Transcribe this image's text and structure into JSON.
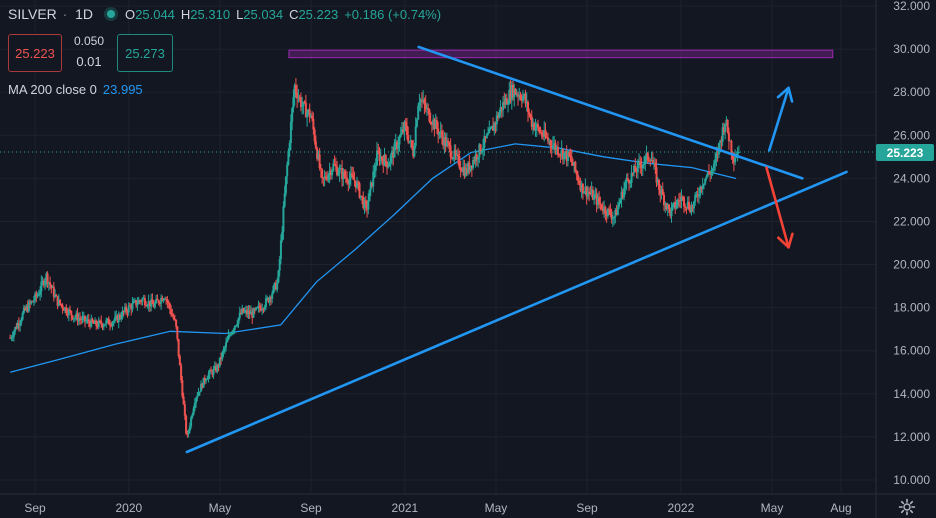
{
  "header": {
    "symbol": "SILVER",
    "timeframe": "1D",
    "ohlc": [
      {
        "k": "O",
        "v": "25.044"
      },
      {
        "k": "H",
        "v": "25.310"
      },
      {
        "k": "L",
        "v": "25.034"
      },
      {
        "k": "C",
        "v": "25.223"
      }
    ],
    "change": "+0.186 (+0.74%)"
  },
  "trade": {
    "sell_price": "25.223",
    "spread": "0.050",
    "quantity": "0.01",
    "buy_price": "25.273"
  },
  "indicator": {
    "label": "MA 200 close 0",
    "value": "23.995"
  },
  "last_price_tag": "25.223",
  "chart_data": {
    "type": "candlestick",
    "y_axis_ticks": [
      "32.000",
      "30.000",
      "28.000",
      "26.000",
      "24.000",
      "22.000",
      "20.000",
      "18.000",
      "16.000",
      "14.000",
      "12.000",
      "10.000"
    ],
    "x_axis_ticks": [
      "Sep",
      "2020",
      "May",
      "Sep",
      "2021",
      "May",
      "Sep",
      "2022",
      "May",
      "Aug"
    ],
    "ylim": [
      9.5,
      32.3
    ],
    "last_close": 25.223,
    "price_path": [
      [
        2019.57,
        16.6
      ],
      [
        2019.62,
        17.8
      ],
      [
        2019.67,
        18.6
      ],
      [
        2019.7,
        19.5
      ],
      [
        2019.74,
        18.3
      ],
      [
        2019.8,
        17.6
      ],
      [
        2019.88,
        17.2
      ],
      [
        2019.95,
        17.4
      ],
      [
        2020.0,
        18.0
      ],
      [
        2020.05,
        18.4
      ],
      [
        2020.09,
        18.1
      ],
      [
        2020.13,
        18.6
      ],
      [
        2020.17,
        17.2
      ],
      [
        2020.21,
        11.9
      ],
      [
        2020.24,
        13.8
      ],
      [
        2020.28,
        14.8
      ],
      [
        2020.32,
        15.2
      ],
      [
        2020.37,
        16.9
      ],
      [
        2020.41,
        17.8
      ],
      [
        2020.45,
        17.7
      ],
      [
        2020.5,
        18.3
      ],
      [
        2020.54,
        19.2
      ],
      [
        2020.57,
        24.1
      ],
      [
        2020.6,
        28.3
      ],
      [
        2020.63,
        27.3
      ],
      [
        2020.66,
        26.9
      ],
      [
        2020.7,
        23.8
      ],
      [
        2020.74,
        24.6
      ],
      [
        2020.78,
        24.1
      ],
      [
        2020.82,
        23.9
      ],
      [
        2020.86,
        22.5
      ],
      [
        2020.9,
        25.1
      ],
      [
        2020.94,
        24.7
      ],
      [
        2021.0,
        26.4
      ],
      [
        2021.03,
        25.2
      ],
      [
        2021.05,
        27.8
      ],
      [
        2021.09,
        26.9
      ],
      [
        2021.14,
        25.8
      ],
      [
        2021.18,
        25.0
      ],
      [
        2021.22,
        24.3
      ],
      [
        2021.27,
        25.3
      ],
      [
        2021.31,
        26.1
      ],
      [
        2021.35,
        27.3
      ],
      [
        2021.39,
        28.1
      ],
      [
        2021.43,
        27.8
      ],
      [
        2021.46,
        26.6
      ],
      [
        2021.5,
        26.0
      ],
      [
        2021.55,
        25.4
      ],
      [
        2021.6,
        24.9
      ],
      [
        2021.64,
        23.6
      ],
      [
        2021.68,
        23.2
      ],
      [
        2021.72,
        22.6
      ],
      [
        2021.76,
        22.2
      ],
      [
        2021.8,
        23.8
      ],
      [
        2021.85,
        24.6
      ],
      [
        2021.89,
        25.1
      ],
      [
        2021.92,
        23.6
      ],
      [
        2021.96,
        22.4
      ],
      [
        2022.0,
        23.1
      ],
      [
        2022.04,
        22.6
      ],
      [
        2022.08,
        23.9
      ],
      [
        2022.12,
        24.5
      ],
      [
        2022.16,
        26.7
      ],
      [
        2022.19,
        25.0
      ],
      [
        2022.21,
        25.223
      ]
    ],
    "moving_average_200": [
      [
        2019.57,
        15.0
      ],
      [
        2019.75,
        15.6
      ],
      [
        2019.95,
        16.3
      ],
      [
        2020.15,
        16.9
      ],
      [
        2020.35,
        16.8
      ],
      [
        2020.55,
        17.2
      ],
      [
        2020.68,
        19.2
      ],
      [
        2020.82,
        20.7
      ],
      [
        2020.96,
        22.3
      ],
      [
        2021.1,
        24.0
      ],
      [
        2021.24,
        25.2
      ],
      [
        2021.4,
        25.6
      ],
      [
        2021.56,
        25.4
      ],
      [
        2021.72,
        25.0
      ],
      [
        2021.88,
        24.7
      ],
      [
        2022.04,
        24.5
      ],
      [
        2022.2,
        23.995
      ]
    ],
    "resistance_zone": {
      "x": [
        2020.58,
        2022.55
      ],
      "y": [
        29.6,
        29.95
      ]
    },
    "trendlines": [
      {
        "role": "upper",
        "points": [
          [
            2021.05,
            30.1
          ],
          [
            2022.44,
            24.0
          ]
        ]
      },
      {
        "role": "lower",
        "points": [
          [
            2020.21,
            11.3
          ],
          [
            2022.6,
            24.3
          ]
        ]
      }
    ],
    "arrows": [
      {
        "color": "#2196f3",
        "from": [
          2022.32,
          25.3
        ],
        "to": [
          2022.39,
          28.2
        ]
      },
      {
        "color": "#f44336",
        "from": [
          2022.31,
          24.5
        ],
        "to": [
          2022.39,
          20.8
        ]
      }
    ],
    "colors": {
      "up": "#26a69a",
      "down": "#ef5350",
      "ma": "#2196f3",
      "zone": "#9c27b0"
    }
  }
}
